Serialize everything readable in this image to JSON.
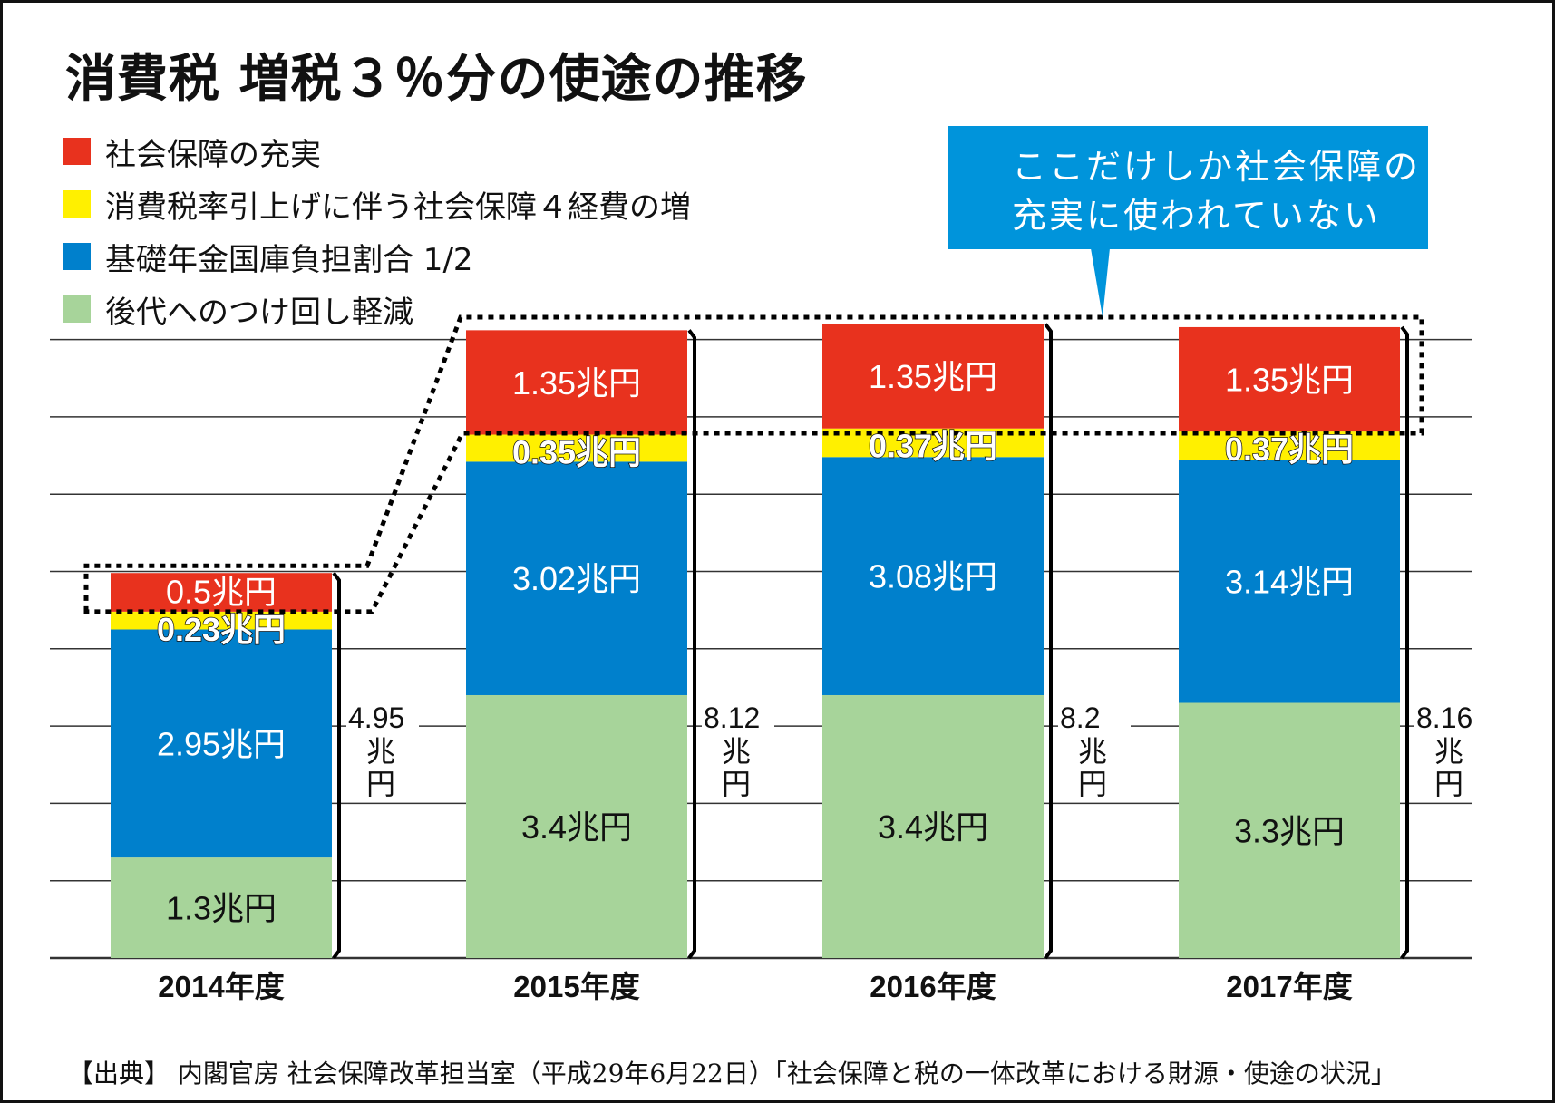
{
  "title": "消費税 増税３％分の使途の推移",
  "legend": [
    {
      "label": "社会保障の充実",
      "color": "#E8321E"
    },
    {
      "label": "消費税率引上げに伴う社会保障４経費の増",
      "color": "#FFF000"
    },
    {
      "label": "基礎年金国庫負担割合 1/2",
      "color": "#0080CC"
    },
    {
      "label": "後代へのつけ回し軽減",
      "color": "#A7D49A"
    }
  ],
  "callout": {
    "line1": "ここだけしか社会保障の",
    "line2": "充実に使われていない",
    "color": "#0094DB"
  },
  "source": "【出典】 内閣官房 社会保障改革担当室（平成29年6月22日）「社会保障と税の一体改革における財源・使途の状況」",
  "chart_data": {
    "type": "bar",
    "stacked": true,
    "title": "消費税 増税３％分の使途の推移",
    "categories": [
      "2014年度",
      "2015年度",
      "2016年度",
      "2017年度"
    ],
    "unit": "兆円",
    "ylim": [
      0,
      8
    ],
    "grid": true,
    "legend_position": "top-left",
    "series": [
      {
        "name": "後代へのつけ回し軽減",
        "color": "#A7D49A",
        "label_color": "#111111",
        "values": [
          1.3,
          3.4,
          3.4,
          3.3
        ],
        "labels": [
          "1.3兆円",
          "3.4兆円",
          "3.4兆円",
          "3.3兆円"
        ]
      },
      {
        "name": "基礎年金国庫負担割合 1/2",
        "color": "#0080CC",
        "label_color": "#FFFFFF",
        "values": [
          2.95,
          3.02,
          3.08,
          3.14
        ],
        "labels": [
          "2.95兆円",
          "3.02兆円",
          "3.08兆円",
          "3.14兆円"
        ]
      },
      {
        "name": "消費税率引上げに伴う社会保障４経費の増",
        "color": "#FFF000",
        "label_color": "#FFFFFF",
        "outlined": true,
        "values": [
          0.23,
          0.35,
          0.37,
          0.37
        ],
        "labels": [
          "0.23兆円",
          "0.35兆円",
          "0.37兆円",
          "0.37兆円"
        ]
      },
      {
        "name": "社会保障の充実",
        "color": "#E8321E",
        "label_color": "#FFFFFF",
        "values": [
          0.5,
          1.35,
          1.35,
          1.35
        ],
        "labels": [
          "0.5兆円",
          "1.35兆円",
          "1.35兆円",
          "1.35兆円"
        ]
      }
    ],
    "totals": [
      {
        "value": "4.95",
        "unit1": "兆",
        "unit2": "円"
      },
      {
        "value": "8.12",
        "unit1": "兆",
        "unit2": "円"
      },
      {
        "value": "8.2",
        "unit1": "兆",
        "unit2": "円"
      },
      {
        "value": "8.16",
        "unit1": "兆",
        "unit2": "円"
      }
    ]
  }
}
